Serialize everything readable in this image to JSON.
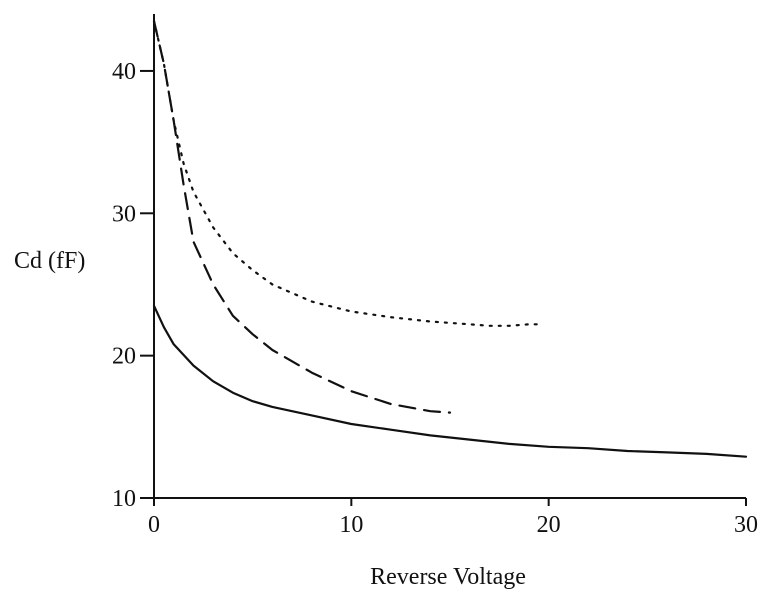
{
  "chart_data": {
    "type": "line",
    "xlabel": "Reverse Voltage",
    "ylabel": "Cd (fF)",
    "xlim": [
      0,
      30
    ],
    "ylim": [
      10,
      44
    ],
    "x_ticks": [
      0,
      10,
      20,
      30
    ],
    "y_ticks": [
      10,
      20,
      30,
      40
    ],
    "grid": false,
    "series": [
      {
        "style": "dotted",
        "x": [
          0,
          0.5,
          1,
          1.5,
          2,
          3,
          4,
          5,
          6,
          8,
          10,
          12,
          14,
          16,
          17,
          18,
          19,
          19.5
        ],
        "y": [
          43.5,
          40.5,
          36.5,
          33.5,
          31.5,
          29,
          27.2,
          26.0,
          25.0,
          23.8,
          23.1,
          22.7,
          22.4,
          22.2,
          22.1,
          22.1,
          22.2,
          22.2
        ]
      },
      {
        "style": "dashed",
        "x": [
          0,
          0.5,
          1,
          1.5,
          2,
          3,
          4,
          5,
          6,
          8,
          10,
          12,
          14,
          15
        ],
        "y": [
          43.5,
          40.5,
          36.5,
          32.0,
          28.0,
          25.0,
          22.8,
          21.5,
          20.4,
          18.8,
          17.5,
          16.6,
          16.1,
          16.0
        ]
      },
      {
        "style": "solid",
        "x": [
          0,
          0.5,
          1,
          2,
          3,
          4,
          5,
          6,
          8,
          10,
          12,
          14,
          16,
          18,
          20,
          22,
          24,
          26,
          28,
          30
        ],
        "y": [
          23.5,
          22.0,
          20.8,
          19.3,
          18.2,
          17.4,
          16.8,
          16.4,
          15.8,
          15.2,
          14.8,
          14.4,
          14.1,
          13.8,
          13.6,
          13.5,
          13.3,
          13.2,
          13.1,
          12.9
        ]
      }
    ]
  }
}
